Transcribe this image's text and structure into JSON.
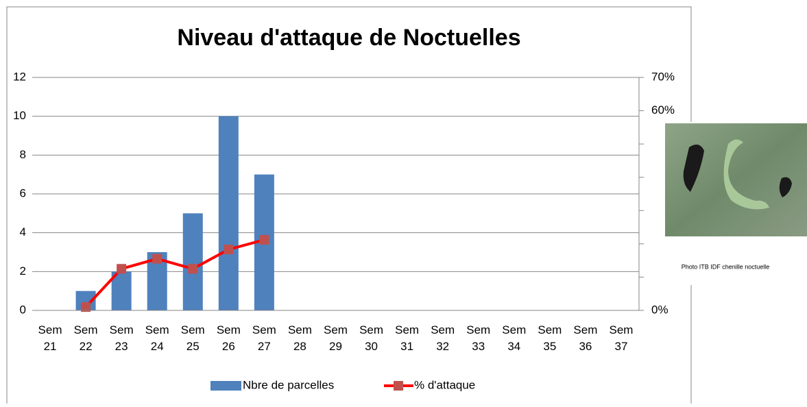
{
  "chart_data": {
    "type": "bar_line",
    "title": "Niveau d'attaque de Noctuelles",
    "categories": [
      "Sem 21",
      "Sem 22",
      "Sem 23",
      "Sem 24",
      "Sem 25",
      "Sem 26",
      "Sem 27",
      "Sem 28",
      "Sem 29",
      "Sem 30",
      "Sem 31",
      "Sem 32",
      "Sem 33",
      "Sem 34",
      "Sem 35",
      "Sem 36",
      "Sem 37"
    ],
    "series": [
      {
        "name": "Nbre de parcelles",
        "type": "bar",
        "color": "#4f81bd",
        "values": [
          null,
          1,
          2,
          3,
          5,
          10,
          7,
          null,
          null,
          null,
          null,
          null,
          null,
          null,
          null,
          null,
          null
        ]
      },
      {
        "name": "% d'attaque",
        "type": "line",
        "axis": "y2",
        "color": "#ff0000",
        "marker_color": "#c0504d",
        "values": [
          null,
          1,
          12.5,
          15.5,
          12.5,
          18.3,
          21.2,
          null,
          null,
          null,
          null,
          null,
          null,
          null,
          null,
          null,
          null
        ]
      }
    ],
    "ylim": [
      0,
      12
    ],
    "yticks": [
      0,
      2,
      4,
      6,
      8,
      10,
      12
    ],
    "y2lim": [
      0,
      70
    ],
    "y2ticks": [
      {
        "value": 0,
        "label": "0%"
      },
      {
        "value": 60,
        "label": "60%"
      },
      {
        "value": 70,
        "label": "70%"
      }
    ],
    "y2minor": [
      10,
      20,
      30,
      40,
      50
    ],
    "grid": true,
    "legend": "bottom",
    "photo_caption": "Photo ITB IDF chenille noctuelle"
  }
}
